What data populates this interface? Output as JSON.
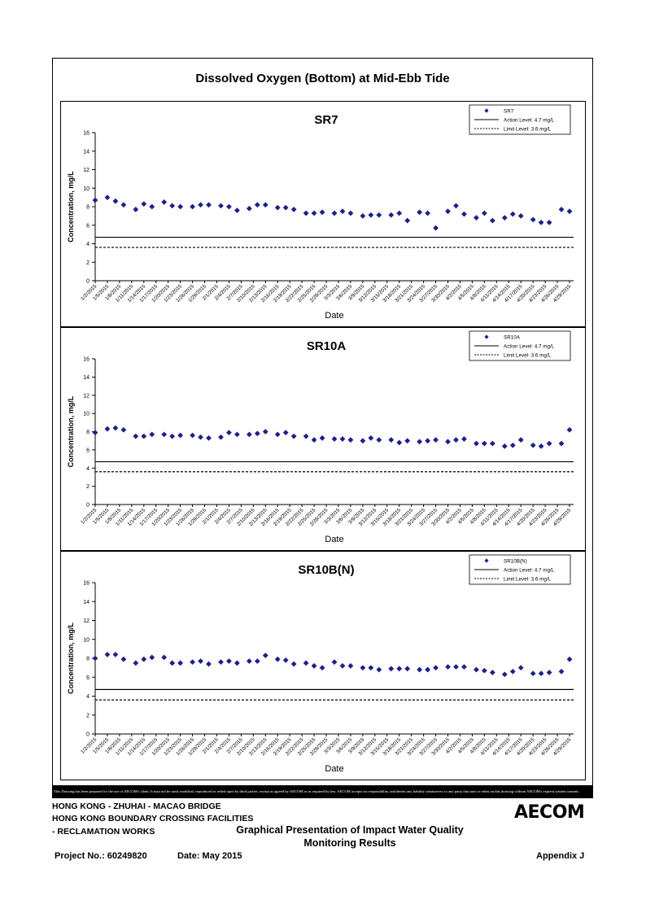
{
  "page": {
    "main_title": "Dissolved Oxygen (Bottom) at Mid-Ebb Tide",
    "disclaimer": "This Drawing has been prepared for the use of AECOM's client. It may not be used, modified, reproduced or relied upon by third parties, except as agreed by AECOM or as required by law. AECOM accepts no responsibility, and denies any liability whatsoever, to any party that uses or relies on this drawing without AECOM's express written consent.",
    "project_line1": "HONG KONG - ZHUHAI - MACAO BRIDGE",
    "project_line2": "HONG KONG BOUNDARY CROSSING FACILITIES",
    "project_line3": "- RECLAMATION WORKS",
    "caption_line1": "Graphical Presentation of Impact Water Quality",
    "caption_line2": "Monitoring Results",
    "project_no": "Project No.: 60249820",
    "date": "Date: May 2015",
    "appendix": "Appendix J",
    "logo": "AECOM"
  },
  "chart_data": [
    {
      "type": "scatter",
      "title": "SR7",
      "xlabel": "Date",
      "ylabel": "Concentration, mg/L",
      "ylim": [
        0,
        16
      ],
      "yticks": [
        0,
        2,
        4,
        6,
        8,
        10,
        12,
        14,
        16
      ],
      "xtick_labels": [
        "1/2/2015",
        "1/5/2015",
        "1/8/2015",
        "1/11/2015",
        "1/14/2015",
        "1/17/2015",
        "1/20/2015",
        "1/23/2015",
        "1/26/2015",
        "1/29/2015",
        "2/1/2015",
        "2/4/2015",
        "2/7/2015",
        "2/10/2015",
        "2/13/2015",
        "2/16/2015",
        "2/19/2015",
        "2/22/2015",
        "2/25/2015",
        "2/28/2015",
        "3/3/2015",
        "3/6/2015",
        "3/9/2015",
        "3/12/2015",
        "3/15/2015",
        "3/18/2015",
        "3/21/2015",
        "3/24/2015",
        "3/27/2015",
        "3/30/2015",
        "4/2/2015",
        "4/5/2015",
        "4/8/2015",
        "4/11/2015",
        "4/14/2015",
        "4/17/2015",
        "4/20/2015",
        "4/23/2015",
        "4/26/2015",
        "4/29/2015"
      ],
      "x_start": "1/2/2015",
      "x_end": "4/30/2015",
      "series": [
        {
          "name": "SR7",
          "marker": "diamond",
          "color": "#1f1f8a",
          "x": [
            "1/2/2015",
            "1/5/2015",
            "1/7/2015",
            "1/9/2015",
            "1/12/2015",
            "1/14/2015",
            "1/16/2015",
            "1/19/2015",
            "1/21/2015",
            "1/23/2015",
            "1/26/2015",
            "1/28/2015",
            "1/30/2015",
            "2/2/2015",
            "2/4/2015",
            "2/6/2015",
            "2/9/2015",
            "2/11/2015",
            "2/13/2015",
            "2/16/2015",
            "2/18/2015",
            "2/20/2015",
            "2/23/2015",
            "2/25/2015",
            "2/27/2015",
            "3/2/2015",
            "3/4/2015",
            "3/6/2015",
            "3/9/2015",
            "3/11/2015",
            "3/13/2015",
            "3/16/2015",
            "3/18/2015",
            "3/20/2015",
            "3/23/2015",
            "3/25/2015",
            "3/27/2015",
            "3/30/2015",
            "4/1/2015",
            "4/3/2015",
            "4/6/2015",
            "4/8/2015",
            "4/10/2015",
            "4/13/2015",
            "4/15/2015",
            "4/17/2015",
            "4/20/2015",
            "4/22/2015",
            "4/24/2015",
            "4/27/2015",
            "4/29/2015"
          ],
          "values": [
            8.7,
            9.0,
            8.6,
            8.2,
            7.7,
            8.3,
            8.0,
            8.5,
            8.1,
            8.0,
            8.0,
            8.2,
            8.2,
            8.1,
            8.0,
            7.6,
            7.8,
            8.2,
            8.2,
            7.9,
            7.9,
            7.7,
            7.3,
            7.3,
            7.4,
            7.3,
            7.5,
            7.3,
            7.0,
            7.1,
            7.1,
            7.1,
            7.3,
            6.5,
            7.4,
            7.3,
            5.7,
            7.5,
            8.1,
            7.2,
            6.8,
            7.3,
            6.5,
            6.8,
            7.2,
            7.0,
            6.6,
            6.3,
            6.3,
            7.7,
            7.5
          ]
        }
      ],
      "reference_lines": [
        {
          "label": "Action Level: 4.7 mg/L",
          "y": 4.7,
          "style": "solid"
        },
        {
          "label": "Limit Level: 3.6 mg/L",
          "y": 3.6,
          "style": "dashed"
        }
      ],
      "legend": "top-right",
      "grid": false
    },
    {
      "type": "scatter",
      "title": "SR10A",
      "xlabel": "Date",
      "ylabel": "Concentration, mg/L",
      "ylim": [
        0,
        16
      ],
      "yticks": [
        0,
        2,
        4,
        6,
        8,
        10,
        12,
        14,
        16
      ],
      "xtick_labels": [
        "1/2/2015",
        "1/5/2015",
        "1/8/2015",
        "1/11/2015",
        "1/14/2015",
        "1/17/2015",
        "1/20/2015",
        "1/23/2015",
        "1/26/2015",
        "1/29/2015",
        "2/1/2015",
        "2/4/2015",
        "2/7/2015",
        "2/10/2015",
        "2/13/2015",
        "2/16/2015",
        "2/19/2015",
        "2/22/2015",
        "2/25/2015",
        "2/28/2015",
        "3/3/2015",
        "3/6/2015",
        "3/9/2015",
        "3/12/2015",
        "3/15/2015",
        "3/18/2015",
        "3/21/2015",
        "3/24/2015",
        "3/27/2015",
        "3/30/2015",
        "4/2/2015",
        "4/5/2015",
        "4/8/2015",
        "4/11/2015",
        "4/14/2015",
        "4/17/2015",
        "4/20/2015",
        "4/23/2015",
        "4/26/2015",
        "4/29/2015"
      ],
      "x_start": "1/2/2015",
      "x_end": "4/30/2015",
      "series": [
        {
          "name": "SR10A",
          "marker": "diamond",
          "color": "#1f1f8a",
          "x": [
            "1/2/2015",
            "1/5/2015",
            "1/7/2015",
            "1/9/2015",
            "1/12/2015",
            "1/14/2015",
            "1/16/2015",
            "1/19/2015",
            "1/21/2015",
            "1/23/2015",
            "1/26/2015",
            "1/28/2015",
            "1/30/2015",
            "2/2/2015",
            "2/4/2015",
            "2/6/2015",
            "2/9/2015",
            "2/11/2015",
            "2/13/2015",
            "2/16/2015",
            "2/18/2015",
            "2/20/2015",
            "2/23/2015",
            "2/25/2015",
            "2/27/2015",
            "3/2/2015",
            "3/4/2015",
            "3/6/2015",
            "3/9/2015",
            "3/11/2015",
            "3/13/2015",
            "3/16/2015",
            "3/18/2015",
            "3/20/2015",
            "3/23/2015",
            "3/25/2015",
            "3/27/2015",
            "3/30/2015",
            "4/1/2015",
            "4/3/2015",
            "4/6/2015",
            "4/8/2015",
            "4/10/2015",
            "4/13/2015",
            "4/15/2015",
            "4/17/2015",
            "4/20/2015",
            "4/22/2015",
            "4/24/2015",
            "4/27/2015",
            "4/29/2015"
          ],
          "values": [
            7.9,
            8.3,
            8.4,
            8.2,
            7.5,
            7.5,
            7.7,
            7.7,
            7.5,
            7.6,
            7.6,
            7.4,
            7.3,
            7.4,
            7.9,
            7.7,
            7.7,
            7.8,
            8.0,
            7.7,
            7.9,
            7.5,
            7.5,
            7.1,
            7.3,
            7.2,
            7.2,
            7.1,
            7.0,
            7.3,
            7.1,
            7.1,
            6.8,
            7.0,
            6.9,
            7.0,
            7.1,
            6.9,
            7.1,
            7.2,
            6.7,
            6.7,
            6.7,
            6.4,
            6.5,
            7.1,
            6.5,
            6.4,
            6.7,
            6.7,
            8.2
          ]
        }
      ],
      "reference_lines": [
        {
          "label": "Action Level: 4.7 mg/L",
          "y": 4.7,
          "style": "solid"
        },
        {
          "label": "Limit Level: 3.6 mg/L",
          "y": 3.6,
          "style": "dashed"
        }
      ],
      "legend": "top-right",
      "grid": false
    },
    {
      "type": "scatter",
      "title": "SR10B(N)",
      "xlabel": "Date",
      "ylabel": "Concentration, mg/L",
      "ylim": [
        0,
        16
      ],
      "yticks": [
        0,
        2,
        4,
        6,
        8,
        10,
        12,
        14,
        16
      ],
      "xtick_labels": [
        "1/2/2015",
        "1/5/2015",
        "1/8/2015",
        "1/11/2015",
        "1/14/2015",
        "1/17/2015",
        "1/20/2015",
        "1/23/2015",
        "1/26/2015",
        "1/29/2015",
        "2/1/2015",
        "2/4/2015",
        "2/7/2015",
        "2/10/2015",
        "2/13/2015",
        "2/16/2015",
        "2/19/2015",
        "2/22/2015",
        "2/25/2015",
        "2/28/2015",
        "3/3/2015",
        "3/6/2015",
        "3/9/2015",
        "3/12/2015",
        "3/15/2015",
        "3/18/2015",
        "3/21/2015",
        "3/24/2015",
        "3/27/2015",
        "3/30/2015",
        "4/2/2015",
        "4/5/2015",
        "4/8/2015",
        "4/11/2015",
        "4/14/2015",
        "4/17/2015",
        "4/20/2015",
        "4/23/2015",
        "4/26/2015",
        "4/29/2015"
      ],
      "x_start": "1/2/2015",
      "x_end": "4/30/2015",
      "series": [
        {
          "name": "SR10B(N)",
          "marker": "diamond",
          "color": "#1f1f8a",
          "x": [
            "1/2/2015",
            "1/5/2015",
            "1/7/2015",
            "1/9/2015",
            "1/12/2015",
            "1/14/2015",
            "1/16/2015",
            "1/19/2015",
            "1/21/2015",
            "1/23/2015",
            "1/26/2015",
            "1/28/2015",
            "1/30/2015",
            "2/2/2015",
            "2/4/2015",
            "2/6/2015",
            "2/9/2015",
            "2/11/2015",
            "2/13/2015",
            "2/16/2015",
            "2/18/2015",
            "2/20/2015",
            "2/23/2015",
            "2/25/2015",
            "2/27/2015",
            "3/2/2015",
            "3/4/2015",
            "3/6/2015",
            "3/9/2015",
            "3/11/2015",
            "3/13/2015",
            "3/16/2015",
            "3/18/2015",
            "3/20/2015",
            "3/23/2015",
            "3/25/2015",
            "3/27/2015",
            "3/30/2015",
            "4/1/2015",
            "4/3/2015",
            "4/6/2015",
            "4/8/2015",
            "4/10/2015",
            "4/13/2015",
            "4/15/2015",
            "4/17/2015",
            "4/20/2015",
            "4/22/2015",
            "4/24/2015",
            "4/27/2015",
            "4/29/2015"
          ],
          "values": [
            8.0,
            8.4,
            8.4,
            7.9,
            7.5,
            7.9,
            8.1,
            8.1,
            7.5,
            7.5,
            7.6,
            7.7,
            7.4,
            7.6,
            7.7,
            7.5,
            7.7,
            7.7,
            8.3,
            7.9,
            7.8,
            7.4,
            7.5,
            7.2,
            7.0,
            7.6,
            7.2,
            7.2,
            7.0,
            7.0,
            6.8,
            6.9,
            6.9,
            6.9,
            6.8,
            6.8,
            7.0,
            7.1,
            7.1,
            7.1,
            6.8,
            6.7,
            6.5,
            6.3,
            6.6,
            7.0,
            6.4,
            6.4,
            6.5,
            6.6,
            7.9
          ]
        }
      ],
      "reference_lines": [
        {
          "label": "Action Level: 4.7 mg/L",
          "y": 4.7,
          "style": "solid"
        },
        {
          "label": "Limit Level: 3.6 mg/L",
          "y": 3.6,
          "style": "dashed"
        }
      ],
      "legend": "top-right",
      "grid": false
    }
  ]
}
